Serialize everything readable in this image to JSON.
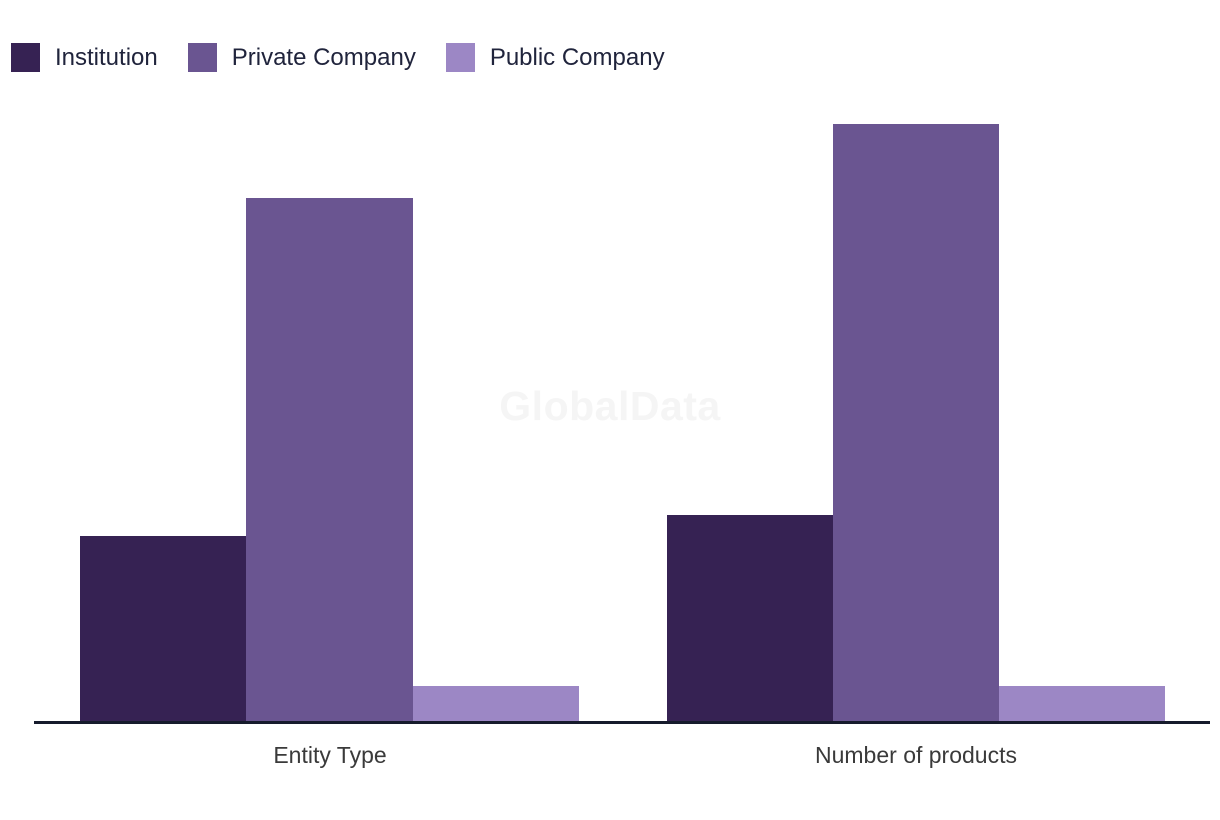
{
  "legend": {
    "items": [
      {
        "label": "Institution",
        "color": "#362253"
      },
      {
        "label": "Private Company",
        "color": "#6A5591"
      },
      {
        "label": "Public Company",
        "color": "#9C87C5"
      }
    ]
  },
  "watermark": "GlobalData",
  "colors": {
    "background": "#FFFFFF",
    "axis_line": "#161B2C",
    "category_label_text": "#3A3A3A",
    "legend_text": "#20243C",
    "watermark_text": "#F5F5F5"
  },
  "chart_data": {
    "type": "bar",
    "title": "",
    "xlabel": "",
    "ylabel": "",
    "categories": [
      "Entity Type",
      "Number of products"
    ],
    "series": [
      {
        "name": "Institution",
        "color": "#362253",
        "values": [
          5.3,
          5.9
        ]
      },
      {
        "name": "Private Company",
        "color": "#6A5591",
        "values": [
          15.0,
          17.1
        ]
      },
      {
        "name": "Public Company",
        "color": "#9C87C5",
        "values": [
          1.0,
          1.0
        ]
      }
    ],
    "ylim": [
      0,
      17.8
    ],
    "y_axis_visible": false,
    "grid": false,
    "legend_position": "top-left",
    "watermark": "GlobalData"
  }
}
